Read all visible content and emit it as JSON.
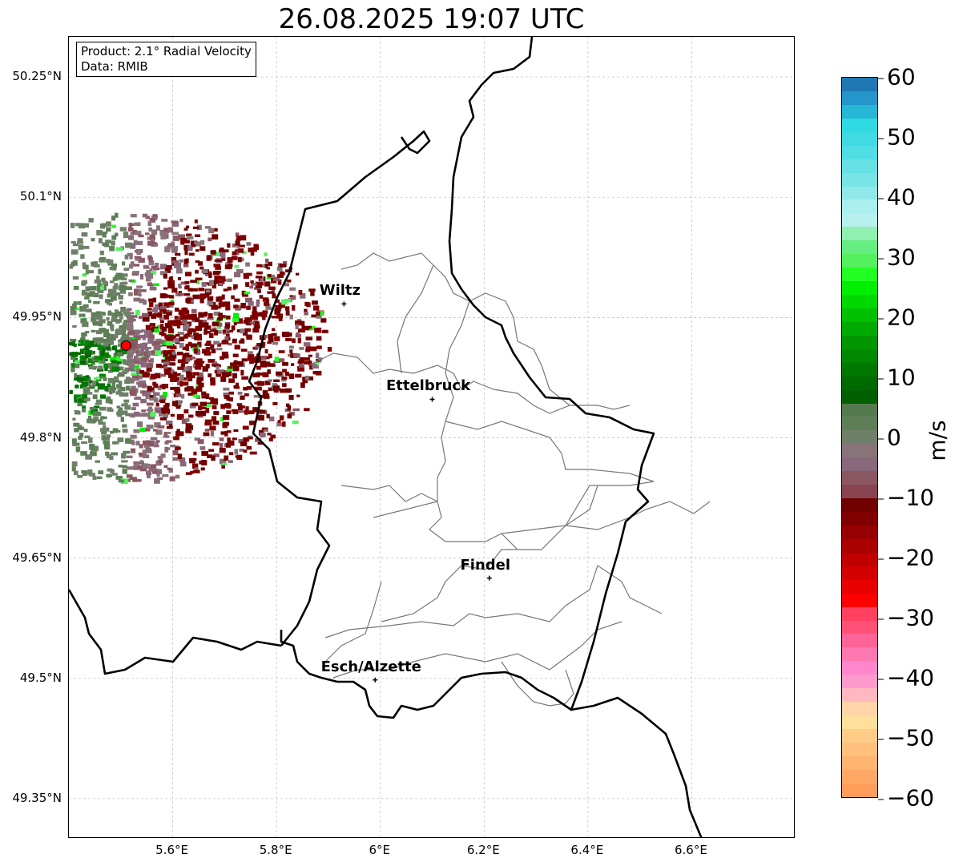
{
  "title": "26.08.2025 19:07 UTC",
  "legend": {
    "product": "Product: 2.1° Radial Velocity",
    "data": "Data: RMIB"
  },
  "map": {
    "lat_ticks": [
      "50.25°N",
      "50.1°N",
      "49.95°N",
      "49.8°N",
      "49.65°N",
      "49.5°N",
      "49.35°N"
    ],
    "lon_ticks": [
      "5.6°E",
      "5.8°E",
      "6°E",
      "6.2°E",
      "6.4°E",
      "6.6°E"
    ],
    "lon_range": [
      5.4,
      6.8
    ],
    "lat_range": [
      49.3,
      50.3
    ],
    "radar_site": {
      "lon": 5.51,
      "lat": 49.915,
      "color": "#ff0000"
    },
    "cities": [
      {
        "name": "Wiltz",
        "lon": 5.93,
        "lat": 49.967
      },
      {
        "name": "Ettelbruck",
        "lon": 6.1,
        "lat": 49.848
      },
      {
        "name": "Findel",
        "lon": 6.21,
        "lat": 49.625
      },
      {
        "name": "Esch/Alzette",
        "lon": 5.99,
        "lat": 49.498
      }
    ]
  },
  "colorbar": {
    "label": "m/s",
    "ticks": [
      "60",
      "50",
      "40",
      "30",
      "20",
      "10",
      "0",
      "−10",
      "−20",
      "−30",
      "−40",
      "−50",
      "−60"
    ],
    "colors": [
      "#ff9e5a",
      "#ffa866",
      "#ffb472",
      "#ffc07e",
      "#ffcc88",
      "#ffe09a",
      "#ffd4a8",
      "#ffb8c0",
      "#ff9acc",
      "#ff86cc",
      "#ff78b0",
      "#ff6496",
      "#ff5078",
      "#ff4060",
      "#ff0000",
      "#e80000",
      "#d40000",
      "#c00000",
      "#aa0000",
      "#960000",
      "#800000",
      "#700000",
      "#884450",
      "#8a5662",
      "#88687a",
      "#887478",
      "#6f8068",
      "#5e7e58",
      "#567a50",
      "#006000",
      "#006a00",
      "#007800",
      "#008800",
      "#009600",
      "#00aa00",
      "#00c000",
      "#00d800",
      "#00ee00",
      "#22ff22",
      "#55f05e",
      "#66ee80",
      "#8ff0b0",
      "#b8f0ee",
      "#aaeeee",
      "#90e8ea",
      "#78e4e6",
      "#66e2e6",
      "#50dee4",
      "#40dae2",
      "#30dae2",
      "#26b6d6",
      "#2496cc",
      "#1f78b4"
    ]
  }
}
